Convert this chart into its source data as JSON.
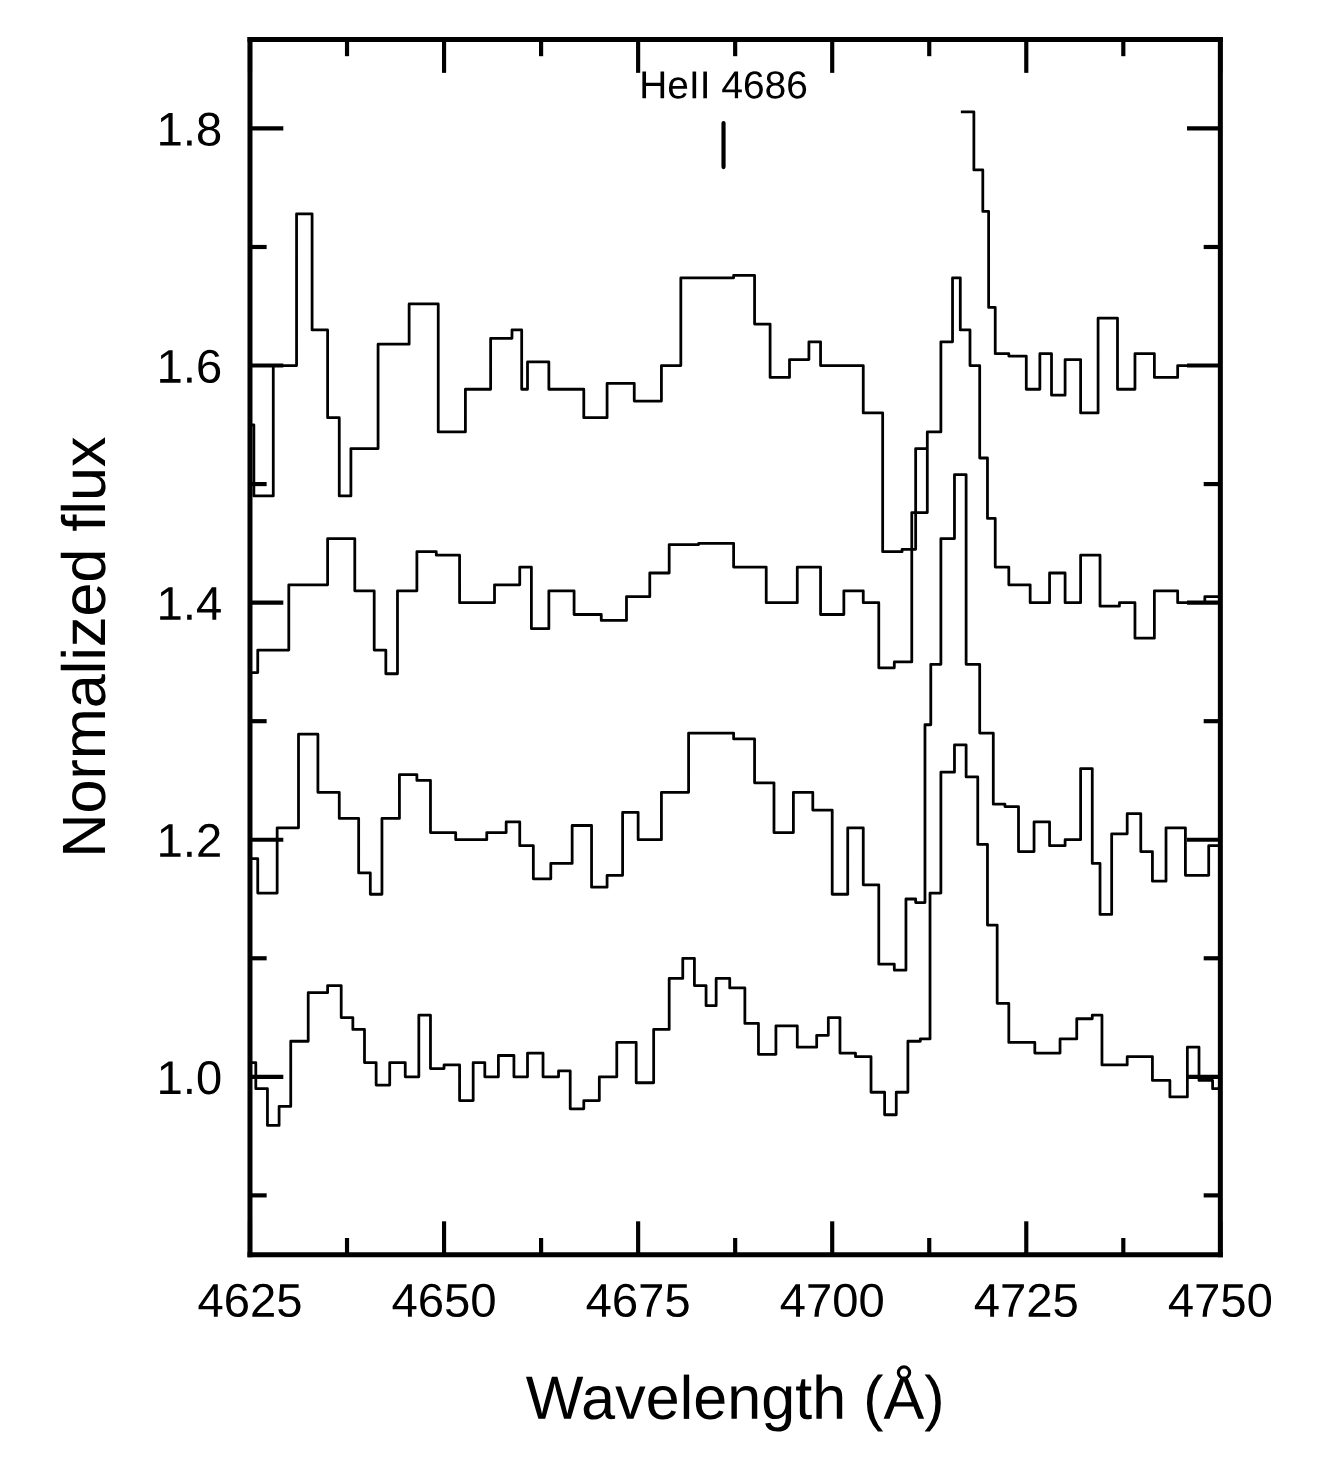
{
  "chart_data": {
    "type": "step",
    "xlabel": "Wavelength (Å)",
    "ylabel": "Normalized flux",
    "annotations": [
      "HeII 4686"
    ],
    "xlim": [
      4625,
      4750
    ],
    "ylim": [
      0.85,
      1.875
    ],
    "xticks": [
      4625,
      {
        "value": 4637.5,
        "label": null
      },
      4650,
      {
        "value": 4662.5,
        "label": null
      },
      4675,
      {
        "value": 4687.5,
        "label": null
      },
      4700,
      {
        "value": 4712.5,
        "label": null
      },
      4725,
      {
        "value": 4737.5,
        "label": null
      },
      4750
    ],
    "yticks": [
      {
        "value": 0.9,
        "label": null
      },
      {
        "value": 1.0,
        "label": "1.0"
      },
      {
        "value": 1.1,
        "label": null
      },
      1.2,
      {
        "value": 1.3,
        "label": null
      },
      1.4,
      {
        "value": 1.5,
        "label": null
      },
      1.6,
      {
        "value": 1.7,
        "label": null
      },
      1.8
    ],
    "series": [
      {
        "color": "#000000",
        "x": [
          4625,
          4626,
          4630,
          4632,
          4634,
          4636,
          4637,
          4639,
          4644,
          4647,
          4651.5,
          4654,
          4658,
          4659.5,
          4660.5,
          4661,
          4666,
          4670,
          4672,
          4677,
          4679,
          4682,
          4685.6,
          4689,
          4691,
          4693,
          4696,
          4698,
          4699,
          4703,
          4705,
          4708,
          4710,
          4711.5,
          4712.5,
          4716,
          4717.5,
          4719,
          4719.8,
          4720.5,
          4721.5,
          4724,
          4726,
          4727.5,
          4729,
          4731,
          4733,
          4735.5,
          4738,
          4740,
          4743,
          4746,
          4750
        ],
        "values": [
          1.55,
          1.49,
          1.6,
          1.728,
          1.63,
          1.556,
          1.49,
          1.53,
          1.618,
          1.652,
          1.544,
          1.58,
          1.623,
          1.63,
          1.58,
          1.603,
          1.58,
          1.556,
          1.585,
          1.57,
          1.6,
          1.674,
          1.674,
          1.676,
          1.635,
          1.59,
          1.605,
          1.62,
          1.6,
          1.6,
          1.56,
          1.443,
          1.445,
          1.53,
          null,
          null,
          1.814,
          1.765,
          1.73,
          1.649,
          1.61,
          1.608,
          1.58,
          1.61,
          1.575,
          1.605,
          1.56,
          1.64,
          1.58,
          1.61,
          1.59,
          1.6,
          1.6
        ]
      },
      {
        "color": "#000000",
        "x": [
          4625,
          4627,
          4633,
          4637,
          4640,
          4642,
          4643,
          4645,
          4648,
          4650,
          4654,
          4659,
          4660.5,
          4662,
          4665,
          4668.5,
          4672,
          4675,
          4678,
          4680,
          4685.6,
          4689,
          4694,
          4697,
          4700,
          4703,
          4705,
          4707,
          4709,
          4711.5,
          4713,
          4715,
          4716,
          4717,
          4718.5,
          4719.5,
          4720.5,
          4721.5,
          4724,
          4727,
          4729,
          4731,
          4733,
          4736,
          4738,
          4740,
          4743,
          4746,
          4750
        ],
        "values": [
          1.341,
          1.36,
          1.415,
          1.454,
          1.41,
          1.36,
          1.34,
          1.41,
          1.443,
          1.44,
          1.4,
          1.415,
          1.43,
          1.378,
          1.41,
          1.39,
          1.385,
          1.405,
          1.425,
          1.449,
          1.45,
          1.43,
          1.4,
          1.43,
          1.39,
          1.41,
          1.4,
          1.345,
          1.35,
          1.476,
          1.544,
          1.62,
          1.674,
          1.63,
          1.6,
          1.522,
          1.471,
          1.43,
          1.415,
          1.4,
          1.425,
          1.4,
          1.44,
          1.397,
          1.4,
          1.37,
          1.41,
          1.4,
          1.405
        ]
      },
      {
        "color": "#000000",
        "x": [
          4625,
          4627,
          4630,
          4632.5,
          4635,
          4638,
          4640,
          4641,
          4643,
          4645.5,
          4647.5,
          4649,
          4654,
          4657,
          4659,
          4660.5,
          4662.5,
          4665,
          4668,
          4670,
          4672,
          4674,
          4676,
          4680,
          4683,
          4685.6,
          4689,
          4691,
          4694,
          4696,
          4699,
          4701,
          4703,
          4705,
          4707,
          4709,
          4710,
          4711.5,
          4712.4,
          4713,
          4715,
          4716.5,
          4718,
          4720,
          4721.5,
          4723,
          4725,
          4727,
          4729,
          4731,
          4733,
          4734,
          4735,
          4737,
          4739,
          4740.5,
          4742,
          4744,
          4747,
          4750
        ],
        "values": [
          1.184,
          1.155,
          1.21,
          1.289,
          1.24,
          1.218,
          1.172,
          1.154,
          1.218,
          1.255,
          1.25,
          1.206,
          1.2,
          1.206,
          1.215,
          1.195,
          1.167,
          1.18,
          1.212,
          1.16,
          1.17,
          1.223,
          1.2,
          1.24,
          1.29,
          1.29,
          1.285,
          1.248,
          1.206,
          1.24,
          1.225,
          1.154,
          1.21,
          1.162,
          1.095,
          1.09,
          1.15,
          1.147,
          1.297,
          1.348,
          1.454,
          1.508,
          1.348,
          1.29,
          1.23,
          1.228,
          1.19,
          1.215,
          1.195,
          1.2,
          1.26,
          1.18,
          1.137,
          1.205,
          1.222,
          1.19,
          1.165,
          1.21,
          1.17,
          1.195
        ]
      },
      {
        "color": "#000000",
        "x": [
          4625,
          4626.5,
          4628,
          4629.5,
          4631,
          4634,
          4636,
          4637.5,
          4639,
          4640.5,
          4642,
          4644,
          4646,
          4647.5,
          4649,
          4651,
          4653,
          4654.5,
          4656,
          4658,
          4660,
          4661.5,
          4664,
          4665.5,
          4667,
          4669,
          4671,
          4673.5,
          4676,
          4678,
          4680,
          4681.5,
          4683,
          4684.5,
          4685.6,
          4688,
          4689.5,
          4691.5,
          4694,
          4697,
          4699,
          4700,
          4702,
          4704,
          4706,
          4707.5,
          4709,
          4710.5,
          4712.2,
          4713,
          4715,
          4716.5,
          4718,
          4719.5,
          4720.5,
          4722,
          4723.5,
          4728.7,
          4730,
          4733,
          4734,
          4735.5,
          4740.5,
          4742,
          4745,
          4746.5,
          4748,
          4750
        ],
        "values": [
          1.012,
          0.99,
          0.959,
          0.975,
          1.03,
          1.071,
          1.077,
          1.05,
          1.04,
          1.012,
          0.993,
          1.012,
          1.0,
          1.052,
          1.007,
          1.01,
          0.98,
          1.012,
          1.0,
          1.018,
          1.0,
          1.02,
          1.0,
          1.005,
          0.973,
          0.98,
          1.0,
          1.029,
          0.995,
          1.04,
          1.083,
          1.1,
          1.077,
          1.06,
          1.083,
          1.075,
          1.045,
          1.019,
          1.043,
          1.025,
          1.035,
          1.05,
          1.02,
          1.017,
          0.987,
          0.968,
          0.987,
          1.03,
          1.032,
          1.155,
          1.257,
          1.28,
          1.253,
          1.196,
          1.128,
          1.062,
          1.029,
          1.02,
          1.032,
          1.049,
          1.052,
          1.01,
          1.017,
          0.997,
          0.983,
          1.025,
          0.997,
          0.99
        ]
      }
    ]
  }
}
